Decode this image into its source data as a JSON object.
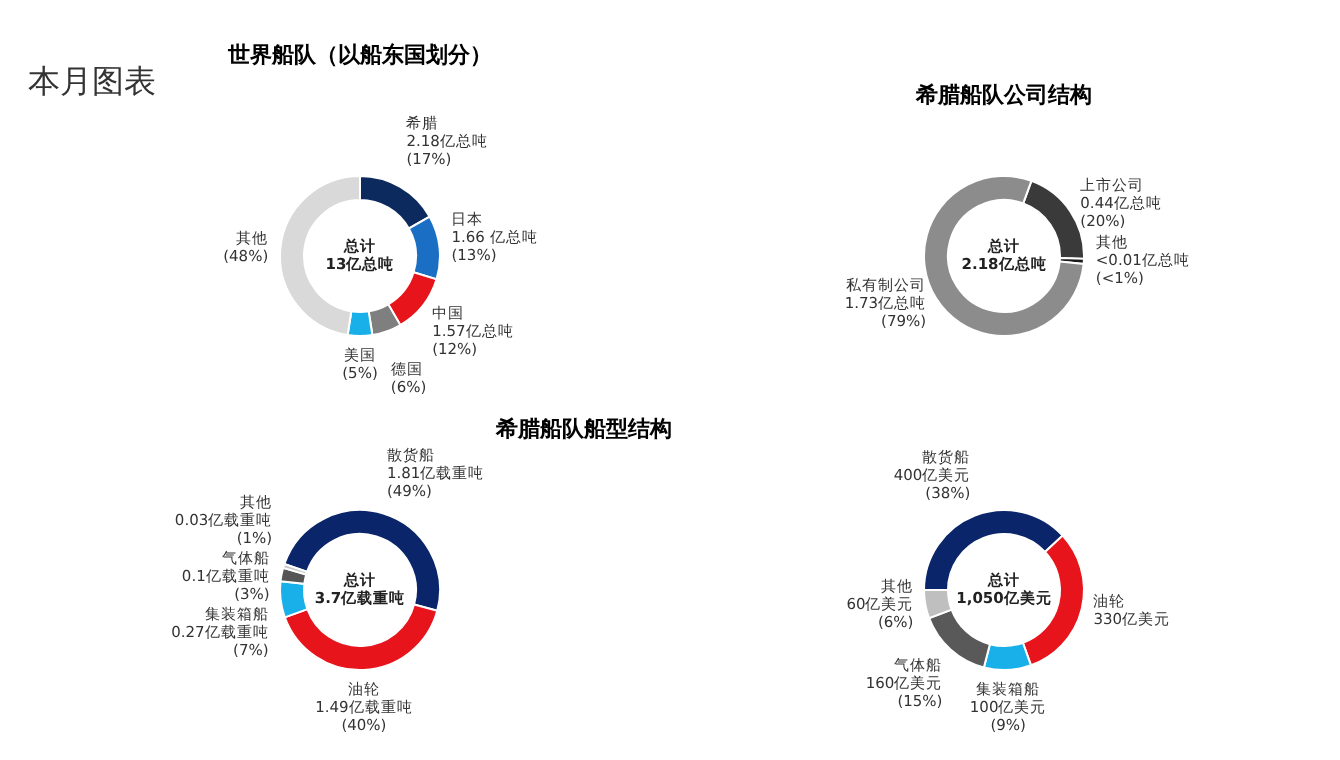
{
  "chart_data": [
    {
      "type": "donut",
      "title": "世界船队（以船东国划分）",
      "categories": [
        "希腊",
        "日本",
        "中国",
        "德国",
        "美国",
        "其他"
      ],
      "values": [
        17,
        13,
        12,
        6,
        5,
        48
      ],
      "value_labels": [
        "2.18亿总吨\n(17%)",
        "1.66 亿总吨\n(13%)",
        "1.57亿总吨\n(12%)",
        "(6%)",
        "(5%)",
        "(48%)"
      ],
      "colors": [
        "#0d2a5e",
        "#1a6fc4",
        "#e8141c",
        "#7f7f7f",
        "#19b0ea",
        "#d9d9d9"
      ],
      "annotations": [
        "本月图表",
        "总计\n13亿总吨"
      ]
    },
    {
      "type": "donut",
      "title": "希腊船队公司结构",
      "categories": [
        "上市公司",
        "其他",
        "私有制公司"
      ],
      "values": [
        20,
        1,
        79
      ],
      "value_labels": [
        "0.44亿总吨\n(20%)",
        "<0.01亿总吨\n(<1%)",
        "1.73亿总吨\n(79%)"
      ],
      "colors": [
        "#3a3a3a",
        "#1a1a1a",
        "#8c8c8c"
      ],
      "annotations": [
        "总计\n2.18亿总吨"
      ]
    },
    {
      "type": "donut",
      "title": "希腊船队船型结构",
      "categories": [
        "散货船",
        "油轮",
        "集装箱船",
        "气体船",
        "其他"
      ],
      "values": [
        1.81,
        1.49,
        0.27,
        0.1,
        0.03
      ],
      "value_labels": [
        "1.81亿载重吨\n(49%)",
        "1.49亿载重吨\n(40%)",
        "0.27亿载重吨\n(7%)",
        "0.1亿载重吨\n(3%)",
        "0.03亿载重吨\n(1%)"
      ],
      "colors": [
        "#0a2569",
        "#e8141c",
        "#19b0ea",
        "#555555",
        "#c8c8c8"
      ],
      "annotations": [
        "总计\n3.7亿载重吨"
      ]
    },
    {
      "type": "donut",
      "categories": [
        "散货船",
        "油轮",
        "集装箱船",
        "气体船",
        "其他"
      ],
      "values": [
        400,
        330,
        100,
        160,
        60
      ],
      "value_labels": [
        "400亿美元\n(38%)",
        "330亿美元",
        "100亿美元\n(9%)",
        "160亿美元\n(15%)",
        "60亿美元\n(6%)"
      ],
      "colors": [
        "#0a2569",
        "#e8141c",
        "#19b0ea",
        "#595959",
        "#bfbfbf"
      ],
      "annotations": [
        "总计\n1,050亿美元"
      ]
    }
  ]
}
